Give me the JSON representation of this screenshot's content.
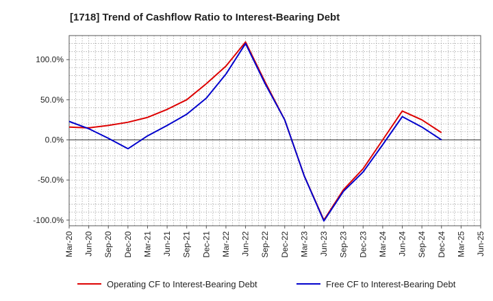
{
  "chart_data": {
    "type": "line",
    "title": "[1718]  Trend of Cashflow Ratio to Interest-Bearing Debt",
    "xlabel": "",
    "ylabel": "",
    "x": [
      "Mar-20",
      "Jun-20",
      "Sep-20",
      "Dec-20",
      "Mar-21",
      "Jun-21",
      "Sep-21",
      "Dec-21",
      "Mar-22",
      "Jun-22",
      "Sep-22",
      "Dec-22",
      "Mar-23",
      "Jun-23",
      "Sep-23",
      "Dec-23",
      "Mar-24",
      "Jun-24",
      "Sep-24",
      "Dec-24",
      "Mar-25",
      "Jun-25"
    ],
    "x_tick_labels": [
      "Mar-20",
      "Jun-20",
      "Sep-20",
      "Dec-20",
      "Mar-21",
      "Jun-21",
      "Sep-21",
      "Dec-21",
      "Mar-22",
      "Jun-22",
      "Sep-22",
      "Dec-22",
      "Mar-23",
      "Jun-23",
      "Sep-23",
      "Dec-23",
      "Mar-24",
      "Jun-24",
      "Sep-24",
      "Dec-24",
      "Mar-25",
      "Jun-25"
    ],
    "y_ticks": [
      100,
      50,
      0,
      -50,
      -100
    ],
    "y_tick_labels": [
      "100.0%",
      "50.0%",
      "0.0%",
      "-50.0%",
      "-100.0%"
    ],
    "ylim": [
      -107,
      130
    ],
    "grid": true,
    "legend_position": "bottom",
    "series": [
      {
        "name": "Operating CF to Interest-Bearing Debt",
        "color": "#dd0000",
        "values": [
          16,
          15,
          18,
          22,
          28,
          38,
          50,
          70,
          92,
          122,
          72,
          25,
          -45,
          -100,
          -62,
          -36,
          0,
          36,
          25,
          9,
          null,
          null
        ]
      },
      {
        "name": "Free CF to Interest-Bearing Debt",
        "color": "#0000cc",
        "values": [
          23,
          14,
          2,
          -11,
          5,
          18,
          32,
          52,
          82,
          120,
          70,
          25,
          -45,
          -101,
          -64,
          -40,
          -6,
          29,
          16,
          0,
          null,
          null
        ]
      }
    ]
  }
}
